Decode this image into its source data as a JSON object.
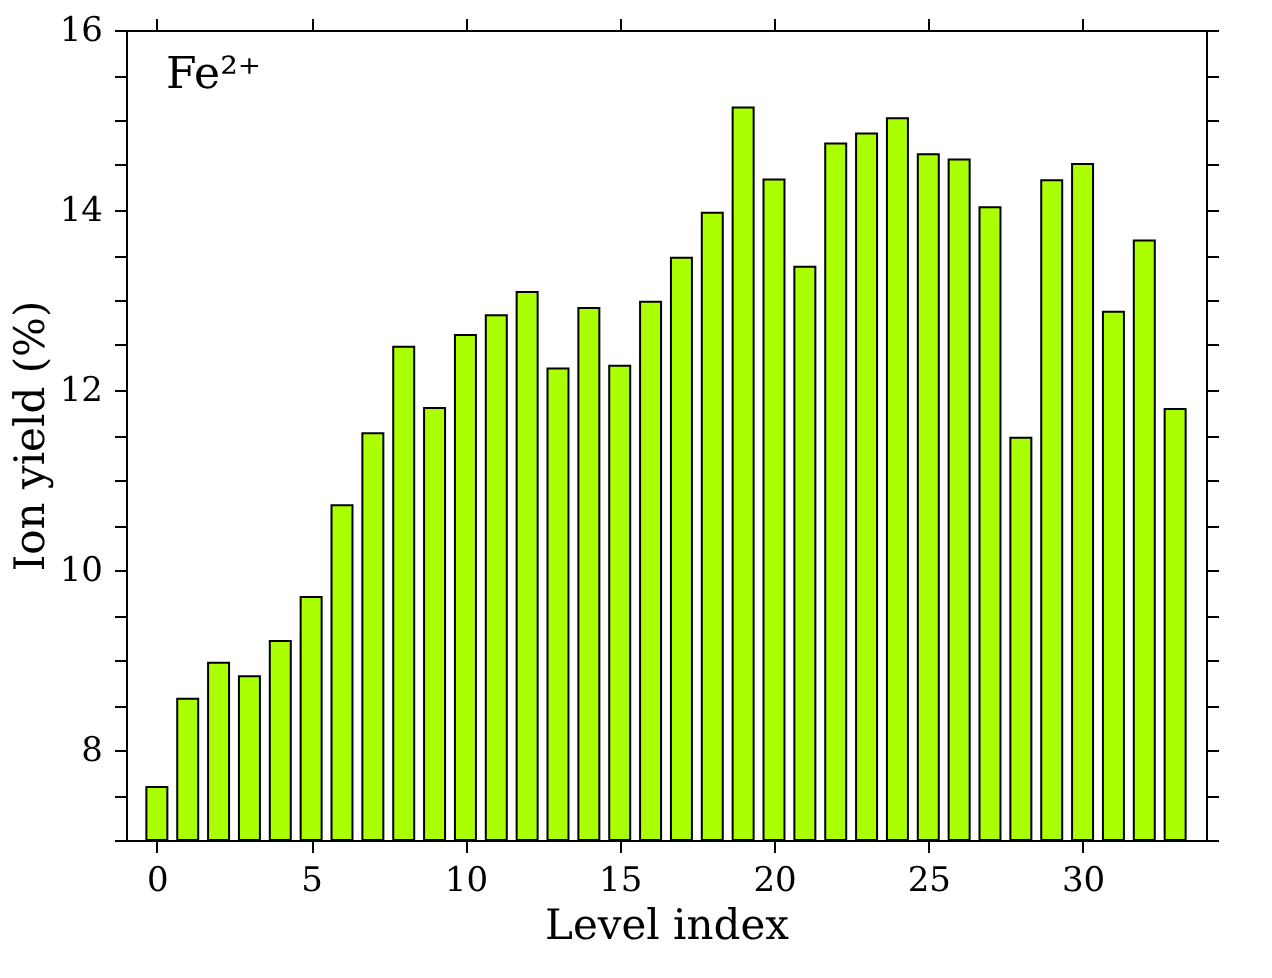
{
  "chart_data": {
    "type": "bar",
    "xlabel": "Level index",
    "ylabel": "Ion yield (%)",
    "annotations": [
      "Fe²⁺"
    ],
    "x": [
      0,
      1,
      2,
      3,
      4,
      5,
      6,
      7,
      8,
      9,
      10,
      11,
      12,
      13,
      14,
      15,
      16,
      17,
      18,
      19,
      20,
      21,
      22,
      23,
      24,
      25,
      26,
      27,
      28,
      29,
      30,
      31,
      32,
      33
    ],
    "values": [
      7.59,
      8.57,
      8.97,
      8.82,
      9.21,
      9.7,
      10.72,
      11.52,
      12.48,
      11.8,
      12.61,
      12.83,
      13.09,
      12.24,
      12.91,
      12.27,
      12.98,
      13.47,
      13.97,
      15.14,
      14.34,
      13.37,
      14.74,
      14.85,
      15.02,
      14.62,
      14.56,
      14.03,
      11.47,
      14.33,
      14.51,
      12.87,
      13.66,
      11.79
    ],
    "color": "#aaff00",
    "xlim": [
      -1,
      34
    ],
    "xticks": [
      0,
      5,
      10,
      15,
      20,
      25,
      30
    ],
    "ylim": [
      7,
      16
    ],
    "yticks": [
      {
        "value": 7,
        "label": null
      },
      {
        "value": 7.5,
        "label": null
      },
      8,
      {
        "value": 8.5,
        "label": null
      },
      {
        "value": 9,
        "label": null
      },
      {
        "value": 9.5,
        "label": null
      },
      10,
      {
        "value": 10.5,
        "label": null
      },
      {
        "value": 11,
        "label": null
      },
      {
        "value": 11.5,
        "label": null
      },
      12,
      {
        "value": 12.5,
        "label": null
      },
      {
        "value": 13,
        "label": null
      },
      {
        "value": 13.5,
        "label": null
      },
      14,
      {
        "value": 14.5,
        "label": null
      },
      {
        "value": 15,
        "label": null
      },
      {
        "value": 15.5,
        "label": null
      },
      16
    ],
    "grid": false
  }
}
